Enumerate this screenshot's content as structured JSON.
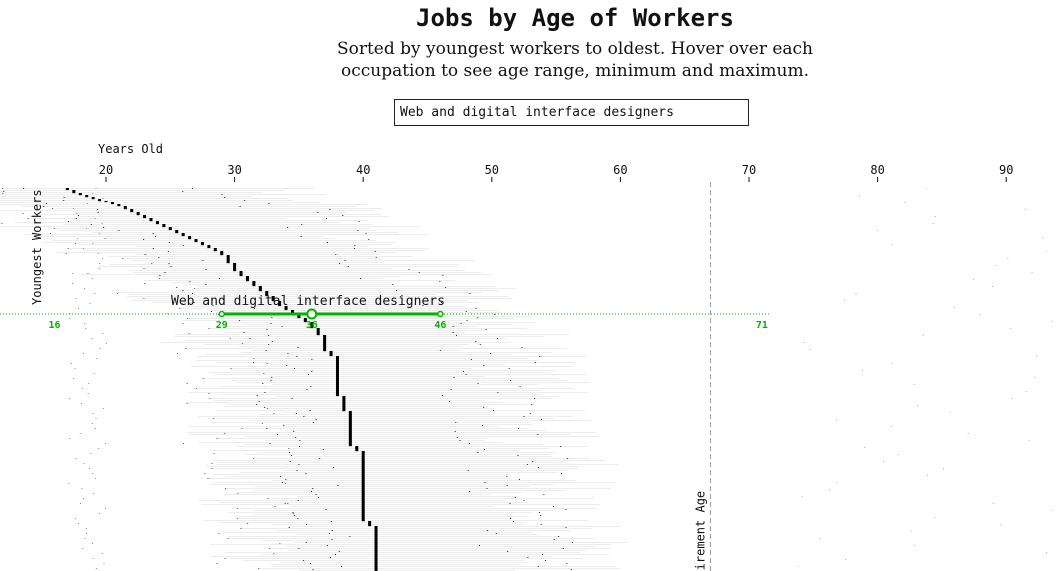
{
  "header": {
    "title": "Jobs by Age of Workers",
    "subtitle": "Sorted by youngest workers to oldest. Hover over each occupation to see age range, minimum and maximum."
  },
  "search": {
    "value": "Web and digital interface designers"
  },
  "chart_data": {
    "type": "scatter",
    "title": "Jobs by Age of Workers",
    "subtitle": "Sorted by youngest workers to oldest. Hover over each occupation to see age range, minimum and maximum.",
    "xlabel": "Years Old",
    "ylabel": "Youngest Workers",
    "xlim": [
      16,
      95
    ],
    "xticks": [
      20,
      30,
      40,
      50,
      60,
      70,
      80,
      90
    ],
    "reference_line": {
      "x": 67,
      "label": "Retirement Age"
    },
    "highlight": {
      "occupation": "Web and digital interface designers",
      "min": 29,
      "median": 36,
      "max": 46,
      "axis_min": 16,
      "axis_max": 71,
      "labels": [
        "16",
        "29",
        "36",
        "46",
        "71"
      ]
    },
    "median_profile": [
      [
        0,
        17
      ],
      [
        4,
        17.5
      ],
      [
        8,
        18.5
      ],
      [
        12,
        19.5
      ],
      [
        16,
        21
      ],
      [
        22,
        22
      ],
      [
        28,
        23
      ],
      [
        34,
        24
      ],
      [
        40,
        25
      ],
      [
        46,
        26
      ],
      [
        52,
        27
      ],
      [
        58,
        28
      ],
      [
        64,
        29
      ],
      [
        70,
        29.5
      ],
      [
        80,
        30
      ],
      [
        90,
        31
      ],
      [
        100,
        32
      ],
      [
        110,
        33
      ],
      [
        120,
        34
      ],
      [
        128,
        35
      ],
      [
        136,
        36
      ],
      [
        144,
        36.5
      ],
      [
        150,
        37
      ],
      [
        160,
        37
      ],
      [
        170,
        38
      ],
      [
        200,
        38
      ],
      [
        215,
        38.5
      ],
      [
        230,
        39
      ],
      [
        255,
        39
      ],
      [
        265,
        40
      ],
      [
        330,
        40
      ],
      [
        340,
        41
      ],
      [
        385,
        41
      ]
    ]
  },
  "colors": {
    "highlight": "#00b400",
    "median_mark": "#000000",
    "range_line": "#d8d8d8",
    "reference_line": "#999999"
  }
}
